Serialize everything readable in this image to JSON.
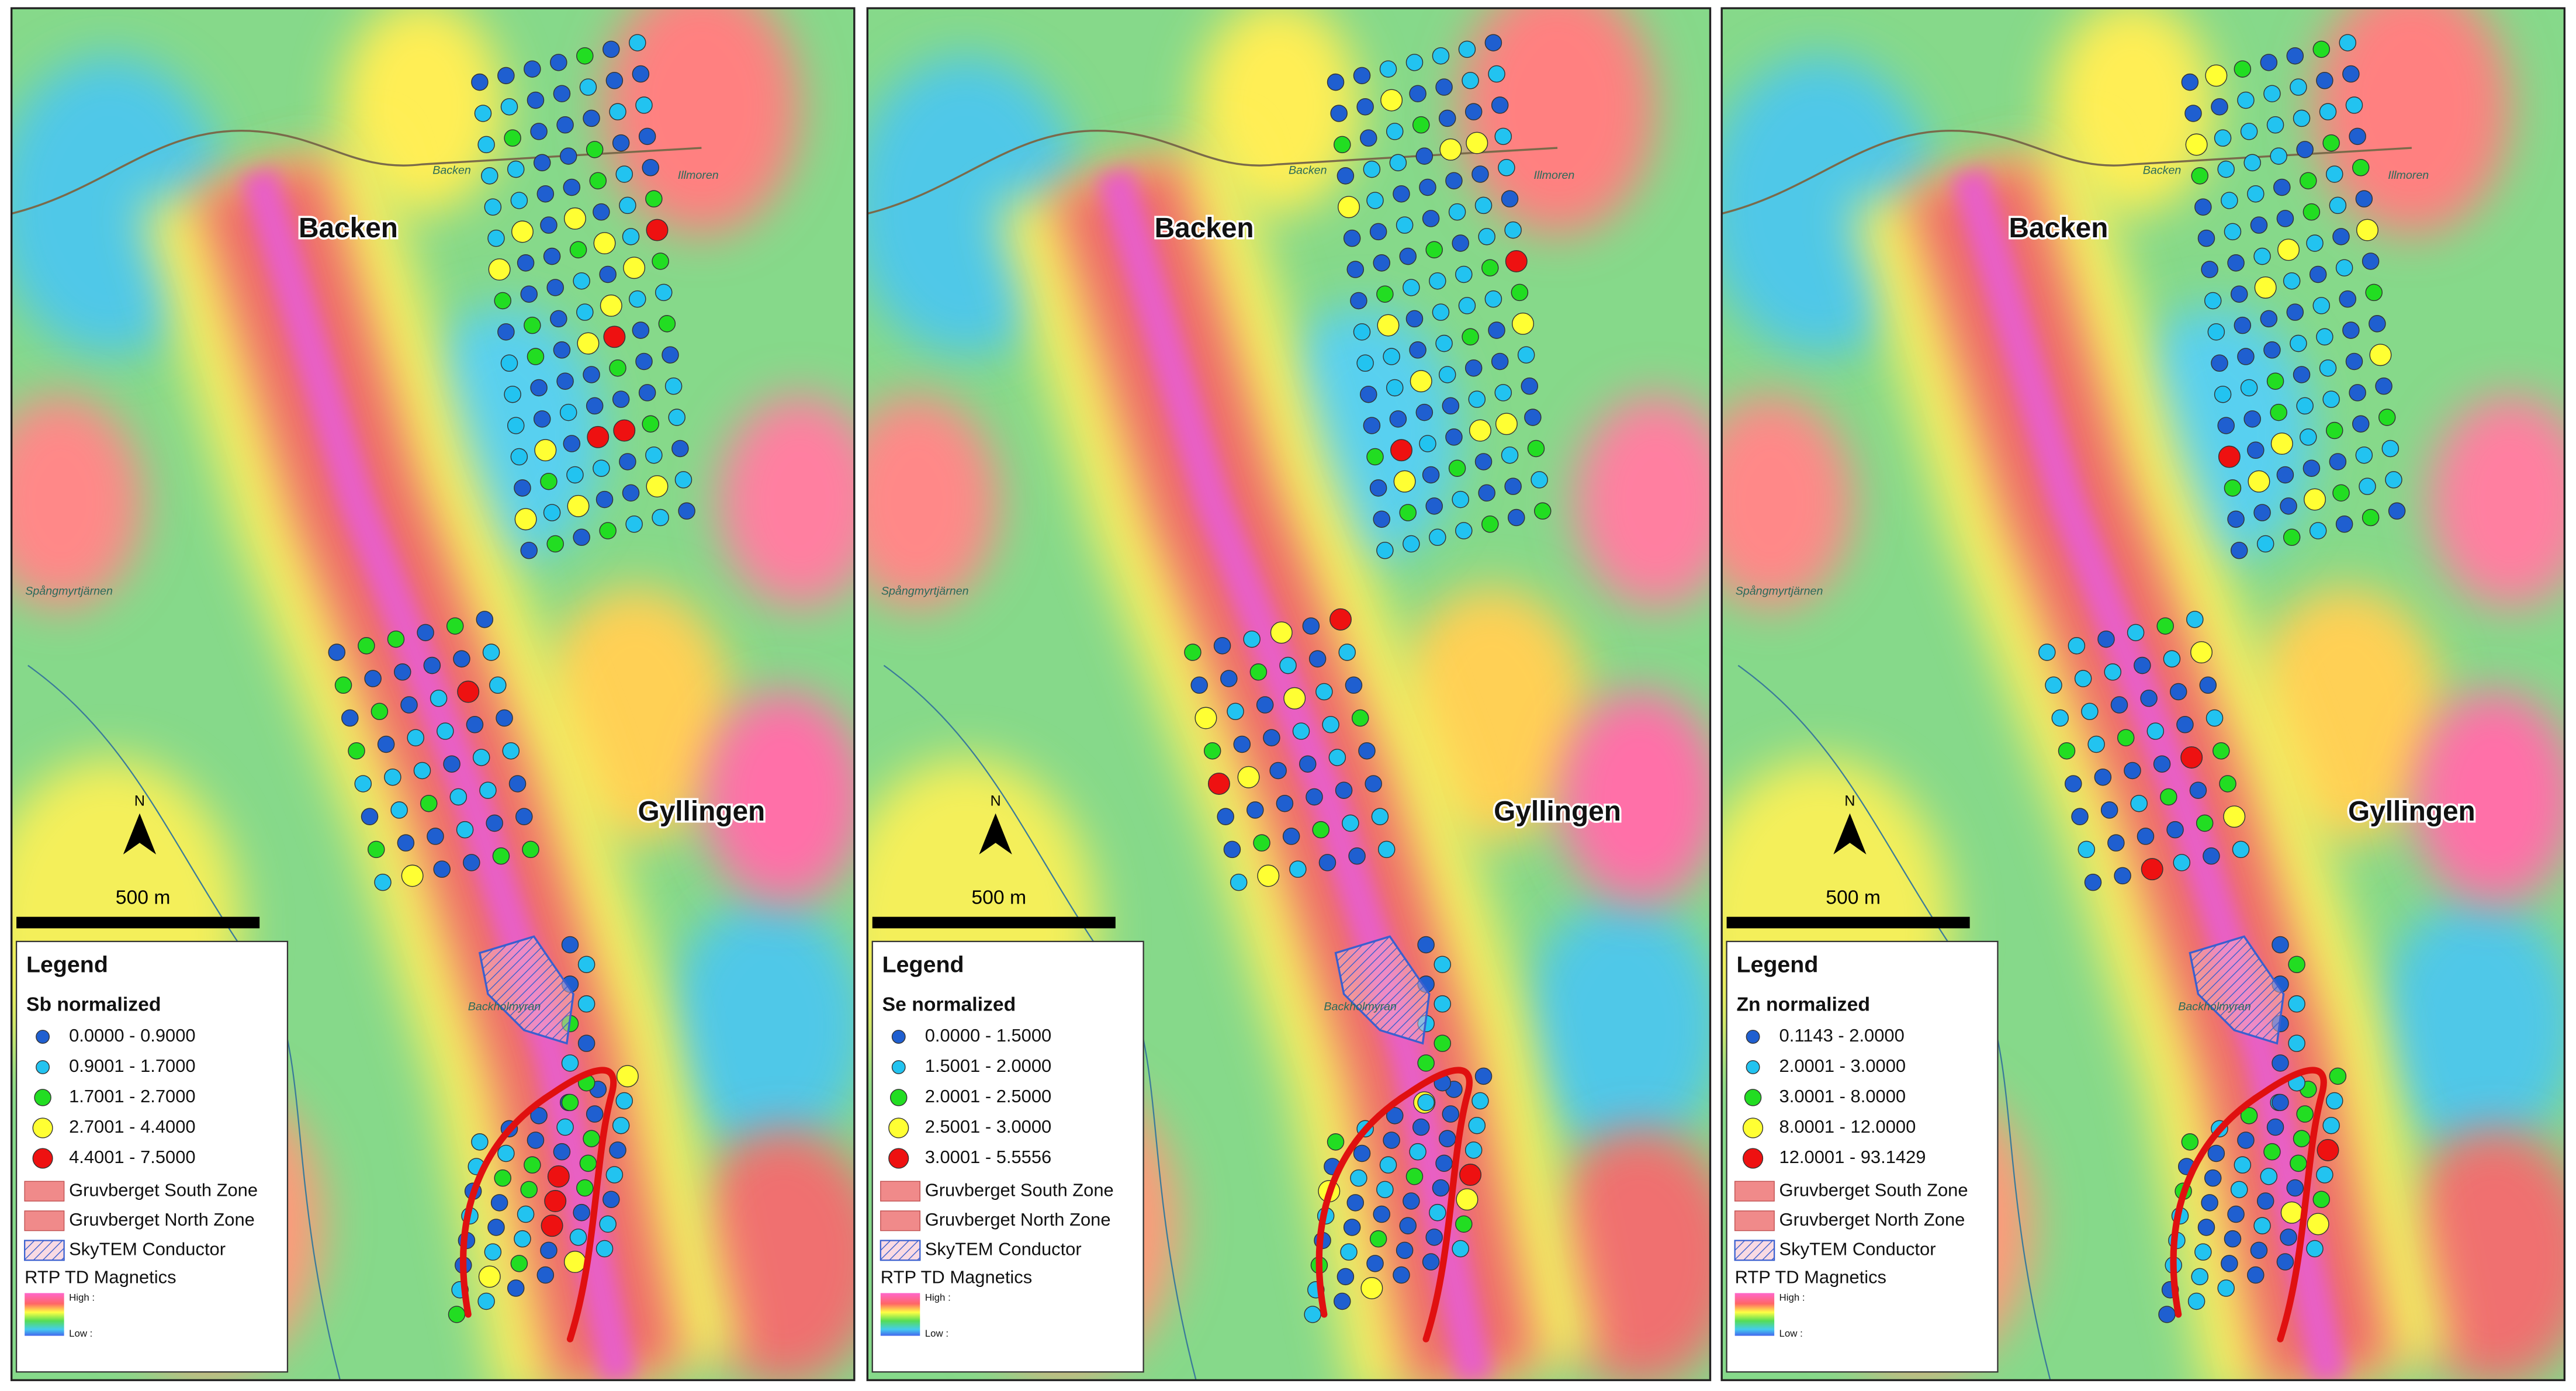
{
  "panels": [
    {
      "places": [
        "Backen",
        "Gyllingen"
      ],
      "small_labels": [
        "Backen",
        "Illmoren",
        "Spångmyrtjärnen",
        "Backholmyran"
      ],
      "north": "N",
      "scale": "500 m",
      "legend": {
        "title": "Legend",
        "element": "Sb normalized",
        "classes": [
          {
            "label": "0.0000 - 0.9000",
            "color": "#1f5fd0"
          },
          {
            "label": "0.9001 - 1.7000",
            "color": "#22c3f0"
          },
          {
            "label": "1.7001 - 2.7000",
            "color": "#22dd22"
          },
          {
            "label": "2.7001 - 4.4000",
            "color": "#ffff33"
          },
          {
            "label": "4.4001 - 7.5000",
            "color": "#ee1111"
          }
        ],
        "zones": [
          "Gruvberget South Zone",
          "Gruvberget North Zone"
        ],
        "conductor": "SkyTEM Conductor",
        "raster": "RTP TD Magnetics",
        "high": "High :",
        "low": "Low :"
      }
    },
    {
      "places": [
        "Backen",
        "Gyllingen"
      ],
      "small_labels": [
        "Backen",
        "Illmoren",
        "Spångmyrtjärnen",
        "Backholmyran"
      ],
      "north": "N",
      "scale": "500 m",
      "legend": {
        "title": "Legend",
        "element": "Se normalized",
        "classes": [
          {
            "label": "0.0000 - 1.5000",
            "color": "#1f5fd0"
          },
          {
            "label": "1.5001 - 2.0000",
            "color": "#22c3f0"
          },
          {
            "label": "2.0001 - 2.5000",
            "color": "#22dd22"
          },
          {
            "label": "2.5001 - 3.0000",
            "color": "#ffff33"
          },
          {
            "label": "3.0001 - 5.5556",
            "color": "#ee1111"
          }
        ],
        "zones": [
          "Gruvberget South Zone",
          "Gruvberget North Zone"
        ],
        "conductor": "SkyTEM Conductor",
        "raster": "RTP TD Magnetics",
        "high": "High :",
        "low": "Low :"
      }
    },
    {
      "places": [
        "Backen",
        "Gyllingen"
      ],
      "small_labels": [
        "Backen",
        "Illmoren",
        "Spångmyrtjärnen",
        "Backholmyran"
      ],
      "north": "N",
      "scale": "500 m",
      "legend": {
        "title": "Legend",
        "element": "Zn normalized",
        "classes": [
          {
            "label": "0.1143 - 2.0000",
            "color": "#1f5fd0"
          },
          {
            "label": "2.0001 - 3.0000",
            "color": "#22c3f0"
          },
          {
            "label": "3.0001 - 8.0000",
            "color": "#22dd22"
          },
          {
            "label": "8.0001 - 12.0000",
            "color": "#ffff33"
          },
          {
            "label": "12.0001 - 93.1429",
            "color": "#ee1111"
          }
        ],
        "zones": [
          "Gruvberget South Zone",
          "Gruvberget North Zone"
        ],
        "conductor": "SkyTEM Conductor",
        "raster": "RTP TD Magnetics",
        "high": "High :",
        "low": "Low :"
      }
    }
  ]
}
